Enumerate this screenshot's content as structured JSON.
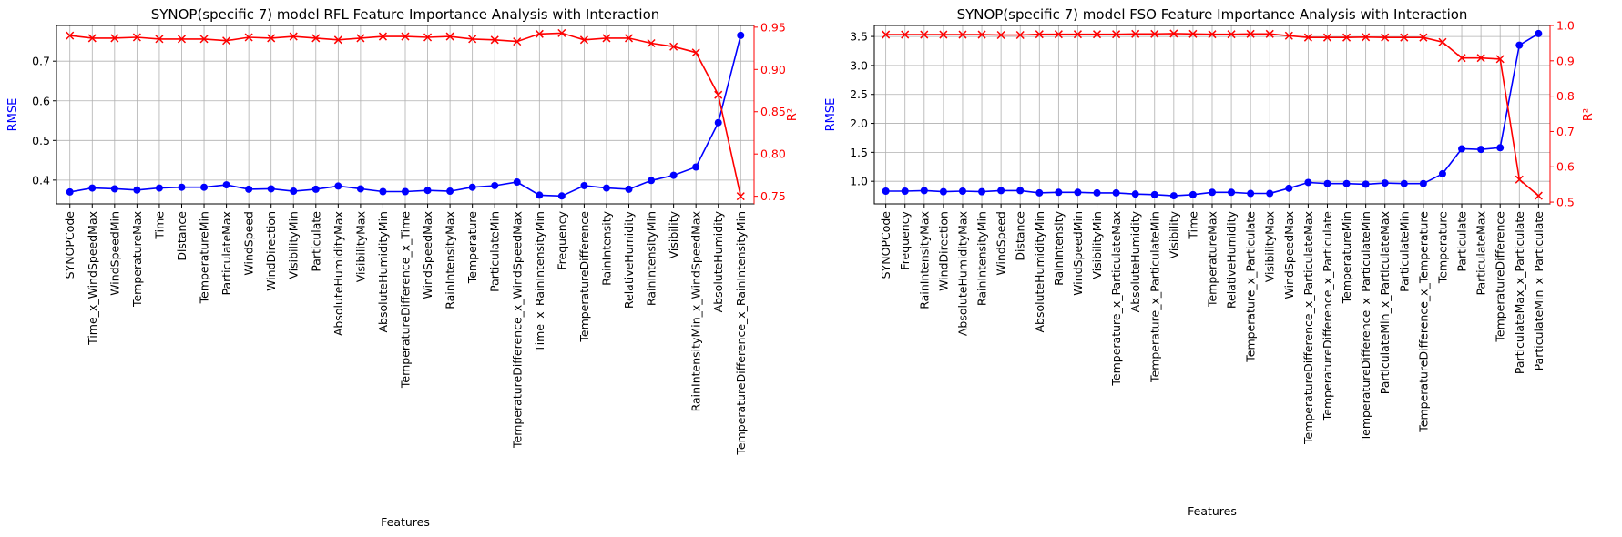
{
  "chart_data": [
    {
      "type": "line",
      "title": "SYNOP(specific 7) model RFL Feature Importance Analysis with Interaction",
      "xlabel": "Features",
      "ylabel": "RMSE",
      "y2label": "R²",
      "categories": [
        "SYNOPCode",
        "Time_x_WindSpeedMax",
        "WindSpeedMin",
        "TemperatureMax",
        "Time",
        "Distance",
        "TemperatureMin",
        "ParticulateMax",
        "WindSpeed",
        "WindDirection",
        "VisibilityMin",
        "Particulate",
        "AbsoluteHumidityMax",
        "VisibilityMax",
        "AbsoluteHumidityMin",
        "TemperatureDifference_x_Time",
        "WindSpeedMax",
        "RainIntensityMax",
        "Temperature",
        "ParticulateMin",
        "TemperatureDifference_x_WindSpeedMax",
        "Time_x_RainIntensityMin",
        "Frequency",
        "TemperatureDifference",
        "RainIntensity",
        "RelativeHumidity",
        "RainIntensityMin",
        "Visibility",
        "RainIntensityMin_x_WindSpeedMax",
        "AbsoluteHumidity",
        "TemperatureDifference_x_RainIntensityMin"
      ],
      "series": [
        {
          "name": "RMSE",
          "axis": "left",
          "color": "#0000ff",
          "marker": "circle",
          "values": [
            0.37,
            0.38,
            0.378,
            0.375,
            0.38,
            0.382,
            0.382,
            0.388,
            0.377,
            0.378,
            0.372,
            0.377,
            0.385,
            0.378,
            0.371,
            0.371,
            0.374,
            0.372,
            0.382,
            0.386,
            0.395,
            0.362,
            0.36,
            0.386,
            0.38,
            0.377,
            0.399,
            0.412,
            0.433,
            0.545,
            0.765
          ]
        },
        {
          "name": "R²",
          "axis": "right",
          "color": "#ff0000",
          "marker": "x",
          "values": [
            0.94,
            0.937,
            0.937,
            0.938,
            0.936,
            0.936,
            0.936,
            0.934,
            0.938,
            0.937,
            0.939,
            0.937,
            0.935,
            0.937,
            0.939,
            0.939,
            0.938,
            0.939,
            0.936,
            0.935,
            0.933,
            0.942,
            0.943,
            0.935,
            0.937,
            0.937,
            0.931,
            0.927,
            0.92,
            0.87,
            0.75
          ]
        }
      ],
      "ylim": [
        0.34,
        0.79
      ],
      "yticks": [
        0.4,
        0.5,
        0.6,
        0.7
      ],
      "y2lim": [
        0.741,
        0.952
      ],
      "y2ticks": [
        0.75,
        0.8,
        0.85,
        0.9,
        0.95
      ],
      "grid": true
    },
    {
      "type": "line",
      "title": "SYNOP(specific 7) model FSO Feature Importance Analysis with Interaction",
      "xlabel": "Features",
      "ylabel": "RMSE",
      "y2label": "R²",
      "categories": [
        "SYNOPCode",
        "Frequency",
        "RainIntensityMax",
        "WindDirection",
        "AbsoluteHumidityMax",
        "RainIntensityMin",
        "WindSpeed",
        "Distance",
        "AbsoluteHumidityMin",
        "RainIntensity",
        "WindSpeedMin",
        "VisibilityMin",
        "Temperature_x_ParticulateMax",
        "AbsoluteHumidity",
        "Temperature_x_ParticulateMin",
        "Visibility",
        "Time",
        "TemperatureMax",
        "RelativeHumidity",
        "Temperature_x_Particulate",
        "VisibilityMax",
        "WindSpeedMax",
        "TemperatureDifference_x_ParticulateMax",
        "TemperatureDifference_x_Particulate",
        "TemperatureMin",
        "TemperatureDifference_x_ParticulateMin",
        "ParticulateMin_x_ParticulateMax",
        "ParticulateMin",
        "TemperatureDifference_x_Temperature",
        "Temperature",
        "Particulate",
        "ParticulateMax",
        "TemperatureDifference",
        "ParticulateMax_x_Particulate",
        "ParticulateMin_x_Particulate"
      ],
      "series": [
        {
          "name": "RMSE",
          "axis": "left",
          "color": "#0000ff",
          "marker": "circle",
          "values": [
            0.83,
            0.83,
            0.84,
            0.82,
            0.83,
            0.82,
            0.84,
            0.84,
            0.8,
            0.81,
            0.81,
            0.8,
            0.8,
            0.78,
            0.77,
            0.75,
            0.77,
            0.81,
            0.81,
            0.79,
            0.79,
            0.88,
            0.98,
            0.96,
            0.96,
            0.95,
            0.97,
            0.96,
            0.96,
            1.13,
            1.56,
            1.55,
            1.58,
            3.35,
            3.55
          ]
        },
        {
          "name": "R²",
          "axis": "right",
          "color": "#ff0000",
          "marker": "x",
          "values": [
            0.974,
            0.974,
            0.974,
            0.974,
            0.974,
            0.974,
            0.973,
            0.973,
            0.975,
            0.975,
            0.975,
            0.975,
            0.975,
            0.976,
            0.976,
            0.977,
            0.976,
            0.975,
            0.975,
            0.976,
            0.976,
            0.971,
            0.966,
            0.966,
            0.966,
            0.967,
            0.966,
            0.966,
            0.966,
            0.953,
            0.908,
            0.908,
            0.905,
            0.564,
            0.518
          ]
        }
      ],
      "ylim": [
        0.61,
        3.69
      ],
      "yticks": [
        1.0,
        1.5,
        2.0,
        2.5,
        3.0,
        3.5
      ],
      "y2lim": [
        0.495,
        1.0
      ],
      "y2ticks": [
        0.5,
        0.6,
        0.7,
        0.8,
        0.9,
        1.0
      ],
      "y2tick_labels": [
        "0.5",
        "0.6",
        "0.7",
        "0.8",
        "0.9",
        "1.0"
      ],
      "grid": true
    }
  ]
}
